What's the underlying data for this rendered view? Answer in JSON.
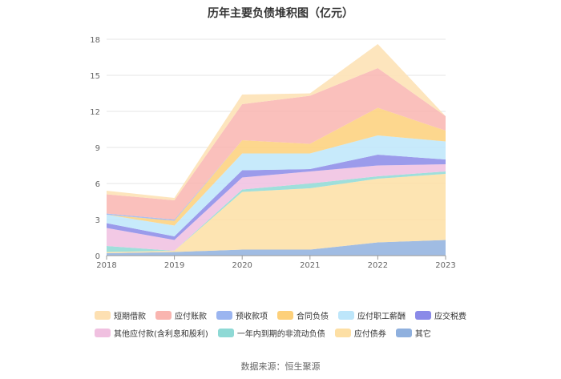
{
  "title": "历年主要负债堆积图（亿元）",
  "source": "数据来源：恒生聚源",
  "chart_data": {
    "type": "area",
    "stacked": true,
    "categories": [
      "2018",
      "2019",
      "2020",
      "2021",
      "2022",
      "2023"
    ],
    "ylim": [
      0,
      18
    ],
    "yticks": [
      0,
      3,
      6,
      9,
      12,
      15,
      18
    ],
    "grid": true,
    "legend_position": "bottom",
    "series": [
      {
        "name": "其它",
        "color": "#8fb0de",
        "values": [
          0.2,
          0.3,
          0.5,
          0.5,
          1.1,
          1.3
        ]
      },
      {
        "name": "应付债券",
        "color": "#fddfa4",
        "values": [
          0.1,
          0.1,
          4.8,
          5.1,
          5.3,
          5.5
        ]
      },
      {
        "name": "一年内到期的非流动负债",
        "color": "#8ed9d5",
        "values": [
          0.5,
          0.0,
          0.2,
          0.4,
          0.2,
          0.2
        ]
      },
      {
        "name": "其他应付款(含利息和股利)",
        "color": "#f0c0e0",
        "values": [
          1.5,
          0.9,
          1.0,
          1.0,
          0.9,
          0.6
        ]
      },
      {
        "name": "应交税费",
        "color": "#8a8ae8",
        "values": [
          0.4,
          0.3,
          0.6,
          0.2,
          0.9,
          0.4
        ]
      },
      {
        "name": "应付职工薪酬",
        "color": "#bde6fa",
        "values": [
          0.7,
          0.9,
          1.4,
          1.3,
          1.6,
          1.5
        ]
      },
      {
        "name": "合同负债",
        "color": "#fdd07a",
        "values": [
          0.0,
          0.4,
          1.1,
          0.8,
          2.3,
          0.9
        ]
      },
      {
        "name": "预收款项",
        "color": "#9bb5f0",
        "values": [
          0.1,
          0.1,
          0.0,
          0.0,
          0.0,
          0.0
        ]
      },
      {
        "name": "应付账款",
        "color": "#f9b5b0",
        "values": [
          1.6,
          1.6,
          3.0,
          4.0,
          3.3,
          1.2
        ]
      },
      {
        "name": "短期借款",
        "color": "#fde0b2",
        "values": [
          0.3,
          0.2,
          0.8,
          0.2,
          2.0,
          0.0
        ]
      }
    ],
    "legend_order": [
      "短期借款",
      "应付账款",
      "预收款项",
      "合同负债",
      "应付职工薪酬",
      "应交税费",
      "其他应付款(含利息和股利)",
      "一年内到期的非流动负债",
      "应付债券",
      "其它"
    ]
  }
}
